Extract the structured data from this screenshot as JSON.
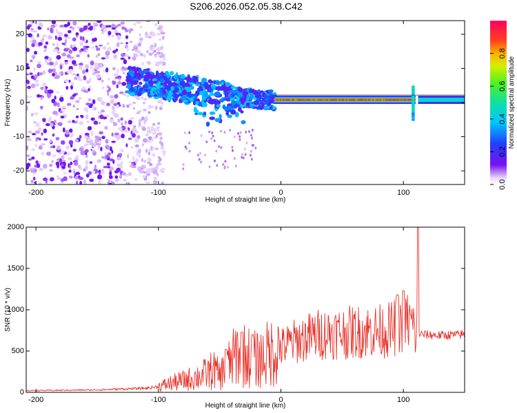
{
  "title": "S206.2026.052.05.38.C42",
  "colorbar": {
    "label": "Normalized spectral amplitude",
    "ticks": [
      "0.0",
      "0.2",
      "0.4",
      "0.6",
      "0.8"
    ],
    "tick_values": [
      0.0,
      0.2,
      0.4,
      0.6,
      0.8
    ]
  },
  "chart_data": [
    {
      "type": "heatmap",
      "name": "spectrogram",
      "xlabel": "Height of straight line (km)",
      "ylabel": "Frequency (Hz)",
      "xlim": [
        -208,
        150
      ],
      "ylim": [
        -24,
        24
      ],
      "xticks": [
        -200,
        -100,
        0,
        100
      ],
      "xtick_labels": [
        "-200",
        "-100",
        "0",
        "100"
      ],
      "yticks": [
        20,
        10,
        0,
        -10,
        -20
      ],
      "ytick_labels": [
        "20",
        "10",
        "0",
        "-10",
        "-20"
      ],
      "colormap": "rainbow (purple=0 to red=1)",
      "features": {
        "noise_region_km": [
          -208,
          -120
        ],
        "scattered_signal_km": [
          -125,
          -5
        ],
        "steady_line_km": [
          -5,
          110
        ],
        "steady_line_freq_hz": 0.8,
        "steady_line_amplitude": 0.95,
        "glitch_km": 108,
        "glitch_freq_range_hz": [
          -5,
          5
        ],
        "late_band_km": [
          112,
          150
        ],
        "late_band_amplitude": 0.45
      }
    },
    {
      "type": "line",
      "name": "snr",
      "xlabel": "Height of straight line (km)",
      "ylabel": "SNR (10 * v/v)",
      "xlim": [
        -208,
        150
      ],
      "ylim": [
        0,
        2000
      ],
      "xticks": [
        -200,
        -100,
        0,
        100
      ],
      "xtick_labels": [
        "-200",
        "-100",
        "0",
        "100"
      ],
      "yticks": [
        0,
        500,
        1000,
        1500,
        2000
      ],
      "ytick_labels": [
        "0",
        "500",
        "1000",
        "1500",
        "2000"
      ],
      "color": "#e8322a",
      "series": [
        {
          "name": "SNR",
          "x": [
            -208,
            -180,
            -150,
            -130,
            -110,
            -100,
            -90,
            -80,
            -70,
            -60,
            -55,
            -50,
            -45,
            -40,
            -35,
            -30,
            -25,
            -20,
            -15,
            -10,
            -5,
            0,
            10,
            20,
            30,
            40,
            50,
            60,
            70,
            80,
            90,
            95,
            100,
            105,
            108,
            110,
            112,
            115,
            130,
            150
          ],
          "y": [
            20,
            25,
            30,
            40,
            50,
            70,
            110,
            140,
            180,
            230,
            280,
            200,
            300,
            380,
            500,
            450,
            420,
            390,
            420,
            470,
            500,
            540,
            610,
            660,
            700,
            720,
            720,
            730,
            740,
            740,
            760,
            800,
            870,
            850,
            800,
            700,
            720,
            700,
            690,
            700
          ]
        }
      ],
      "peaks": [
        {
          "x": -45,
          "y": 520
        },
        {
          "x": -32,
          "y": 730
        },
        {
          "x": -23,
          "y": 700
        },
        {
          "x": 95,
          "y": 1180
        },
        {
          "x": 100,
          "y": 1230
        },
        {
          "x": 112,
          "y": 2000
        }
      ]
    }
  ]
}
